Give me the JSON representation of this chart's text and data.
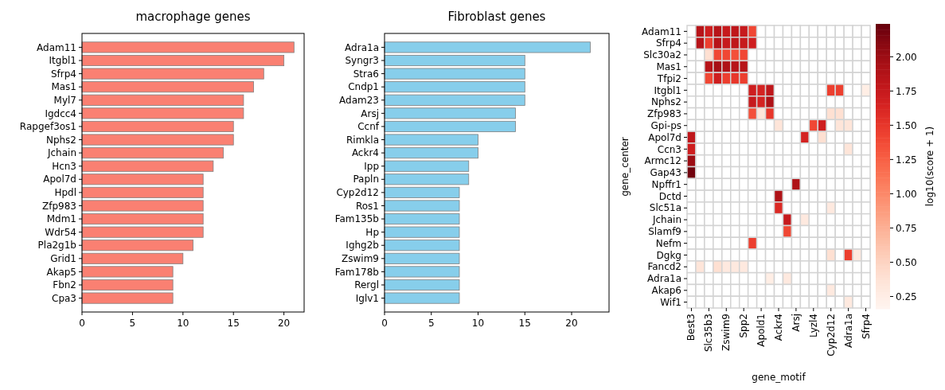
{
  "chart_data": [
    {
      "type": "bar",
      "title": "macrophage genes",
      "orientation": "horizontal",
      "color": "#fa8072",
      "categories": [
        "Adam11",
        "Itgbl1",
        "Sfrp4",
        "Mas1",
        "Myl7",
        "Igdcc4",
        "Rapgef3os1",
        "Nphs2",
        "Jchain",
        "Hcn3",
        "Apol7d",
        "Hpdl",
        "Zfp983",
        "Mdm1",
        "Wdr54",
        "Pla2g1b",
        "Grid1",
        "Akap5",
        "Fbn2",
        "Cpa3"
      ],
      "values": [
        21,
        20,
        18,
        17,
        16,
        16,
        15,
        15,
        14,
        13,
        12,
        12,
        12,
        12,
        12,
        11,
        10,
        9,
        9,
        9
      ],
      "xlim": [
        0,
        22
      ],
      "xticks": [
        0,
        5,
        10,
        15,
        20
      ]
    },
    {
      "type": "bar",
      "title": "Fibroblast genes",
      "orientation": "horizontal",
      "color": "#87ceeb",
      "categories": [
        "Adra1a",
        "Syngr3",
        "Stra6",
        "Cndp1",
        "Adam23",
        "Arsj",
        "Ccnf",
        "Rimkla",
        "Ackr4",
        "Ipp",
        "Papln",
        "Cyp2d12",
        "Ros1",
        "Fam135b",
        "Hp",
        "Ighg2b",
        "Zswim9",
        "Fam178b",
        "Rergl",
        "Iglv1"
      ],
      "values": [
        22,
        15,
        15,
        15,
        15,
        14,
        14,
        10,
        10,
        9,
        9,
        8,
        8,
        8,
        8,
        8,
        8,
        8,
        8,
        8
      ],
      "xlim": [
        0,
        24
      ],
      "xticks": [
        0,
        5,
        10,
        15,
        20
      ]
    },
    {
      "type": "heatmap",
      "xlabel": "gene_motif",
      "ylabel": "gene_center",
      "clabel": "log10(score + 1)",
      "categories": [
        "Best3",
        null,
        "Slc35b3",
        null,
        "Zswim9",
        null,
        "Spp2",
        null,
        "Apold1",
        null,
        "Ackr4",
        null,
        "Arsj",
        null,
        "Lyzl4",
        null,
        "Cyp2d12",
        null,
        "Adra1a",
        null,
        "Sfrp4"
      ],
      "y_categories": [
        "Adam11",
        "Sfrp4",
        "Slc30a2",
        "Mas1",
        "Tfpi2",
        "Itgbl1",
        "Nphs2",
        "Zfp983",
        "Gpi-ps",
        "Apol7d",
        "Ccn3",
        "Armc12",
        "Gap43",
        "Npffr1",
        "Dctd",
        "Slc51a",
        "Jchain",
        "Slamf9",
        "Nefm",
        "Dgkg",
        "Fancd2",
        "Adra1a",
        "Akap6",
        "Wif1"
      ],
      "cells": [
        [
          null,
          1.85,
          1.7,
          1.85,
          1.75,
          1.8,
          1.75,
          1.4,
          null,
          null,
          null,
          null,
          null,
          null,
          null,
          null,
          null,
          null,
          null,
          null,
          null
        ],
        [
          null,
          1.85,
          1.45,
          1.85,
          1.75,
          1.8,
          1.75,
          1.7,
          null,
          null,
          null,
          null,
          null,
          null,
          null,
          null,
          null,
          null,
          null,
          null,
          null
        ],
        [
          null,
          null,
          0.4,
          1.4,
          1.4,
          1.35,
          1.4,
          null,
          null,
          null,
          null,
          null,
          null,
          null,
          null,
          null,
          null,
          null,
          null,
          null,
          null
        ],
        [
          null,
          null,
          1.85,
          1.95,
          1.9,
          1.85,
          1.85,
          null,
          null,
          null,
          null,
          null,
          null,
          null,
          null,
          null,
          null,
          null,
          null,
          null,
          null
        ],
        [
          null,
          null,
          1.4,
          1.7,
          1.45,
          1.5,
          1.45,
          null,
          null,
          null,
          null,
          null,
          null,
          null,
          null,
          null,
          null,
          null,
          null,
          null,
          null
        ],
        [
          null,
          null,
          null,
          null,
          null,
          null,
          null,
          1.7,
          1.65,
          1.8,
          null,
          null,
          null,
          null,
          null,
          null,
          1.45,
          1.45,
          null,
          null,
          0.25
        ],
        [
          null,
          null,
          null,
          null,
          null,
          null,
          null,
          1.75,
          1.65,
          1.9,
          null,
          null,
          null,
          null,
          null,
          null,
          null,
          null,
          null,
          null,
          null
        ],
        [
          null,
          null,
          null,
          null,
          null,
          null,
          null,
          1.35,
          0.35,
          1.5,
          null,
          null,
          null,
          null,
          null,
          null,
          0.4,
          0.4,
          null,
          null,
          null
        ],
        [
          null,
          null,
          null,
          null,
          null,
          null,
          null,
          null,
          null,
          null,
          0.35,
          null,
          null,
          null,
          1.4,
          1.7,
          null,
          0.35,
          0.35,
          null,
          null
        ],
        [
          1.8,
          null,
          null,
          null,
          null,
          null,
          null,
          null,
          null,
          null,
          null,
          null,
          null,
          1.65,
          null,
          0.4,
          null,
          null,
          null,
          null,
          null
        ],
        [
          1.7,
          null,
          null,
          null,
          null,
          null,
          null,
          null,
          null,
          null,
          null,
          null,
          null,
          null,
          null,
          null,
          null,
          null,
          0.35,
          null,
          null
        ],
        [
          2.0,
          null,
          null,
          null,
          null,
          null,
          null,
          null,
          null,
          null,
          null,
          null,
          null,
          null,
          null,
          null,
          null,
          null,
          null,
          null,
          null
        ],
        [
          2.2,
          null,
          null,
          null,
          null,
          null,
          null,
          null,
          null,
          null,
          null,
          null,
          null,
          null,
          null,
          null,
          null,
          null,
          null,
          null,
          null
        ],
        [
          null,
          null,
          null,
          null,
          null,
          null,
          null,
          null,
          null,
          null,
          null,
          null,
          1.9,
          null,
          null,
          null,
          null,
          null,
          null,
          null,
          null
        ],
        [
          null,
          null,
          null,
          null,
          null,
          null,
          null,
          null,
          null,
          null,
          1.9,
          null,
          null,
          null,
          null,
          null,
          null,
          null,
          null,
          null,
          null
        ],
        [
          null,
          null,
          null,
          null,
          null,
          null,
          null,
          null,
          null,
          null,
          1.6,
          null,
          null,
          null,
          null,
          null,
          0.3,
          null,
          null,
          null,
          null
        ],
        [
          null,
          null,
          null,
          null,
          null,
          null,
          null,
          null,
          null,
          null,
          null,
          1.75,
          null,
          0.3,
          null,
          null,
          null,
          null,
          null,
          null,
          null
        ],
        [
          null,
          null,
          null,
          null,
          null,
          null,
          null,
          null,
          null,
          null,
          null,
          1.4,
          null,
          null,
          null,
          null,
          null,
          null,
          null,
          null,
          null
        ],
        [
          null,
          null,
          null,
          null,
          null,
          null,
          null,
          1.45,
          null,
          null,
          null,
          null,
          null,
          null,
          null,
          null,
          null,
          null,
          null,
          null,
          null
        ],
        [
          null,
          null,
          null,
          null,
          null,
          null,
          null,
          null,
          null,
          null,
          null,
          null,
          null,
          null,
          null,
          null,
          0.4,
          null,
          1.45,
          0.3,
          null
        ],
        [
          null,
          0.35,
          null,
          0.4,
          0.3,
          0.3,
          0.3,
          null,
          null,
          null,
          null,
          null,
          null,
          null,
          null,
          null,
          null,
          null,
          null,
          null,
          null
        ],
        [
          null,
          null,
          null,
          null,
          null,
          null,
          null,
          null,
          null,
          0.25,
          null,
          0.3,
          null,
          null,
          null,
          null,
          null,
          null,
          null,
          null,
          null
        ],
        [
          null,
          null,
          null,
          null,
          null,
          null,
          null,
          null,
          null,
          null,
          null,
          null,
          null,
          null,
          null,
          null,
          0.3,
          null,
          null,
          null,
          null
        ],
        [
          null,
          null,
          null,
          null,
          null,
          null,
          null,
          null,
          null,
          null,
          null,
          null,
          null,
          null,
          null,
          null,
          null,
          null,
          0.3,
          null,
          null
        ]
      ],
      "clim": [
        0.16,
        2.24
      ],
      "cticks": [
        {
          "value": 0.25,
          "label": "0.25"
        },
        {
          "value": 0.5,
          "label": "0.50"
        },
        {
          "value": 0.75,
          "label": "0.75"
        },
        {
          "value": 1,
          "label": "1.00"
        },
        {
          "value": 1.25,
          "label": "1.25"
        },
        {
          "value": 1.5,
          "label": "1.50"
        },
        {
          "value": 1.75,
          "label": "1.75"
        },
        {
          "value": 2,
          "label": "2.00"
        }
      ]
    }
  ]
}
